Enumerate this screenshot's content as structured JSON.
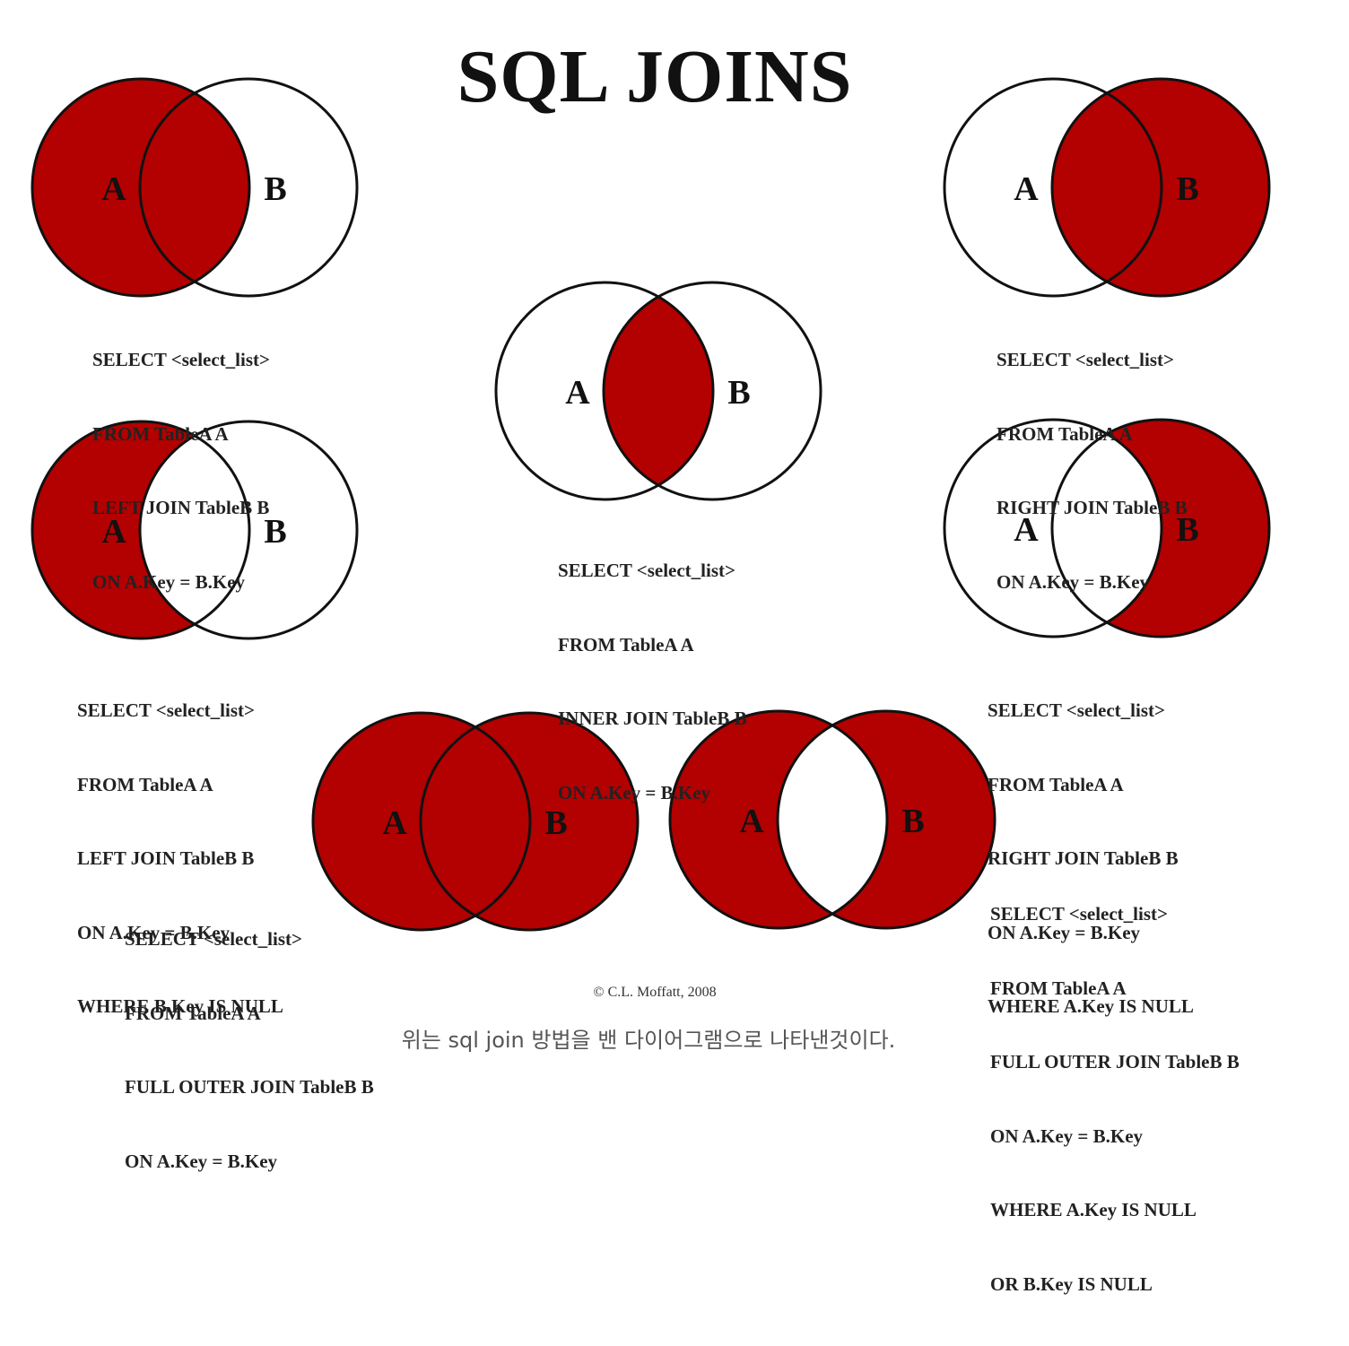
{
  "title": "SQL JOINS",
  "colors": {
    "fill": "#b30000",
    "stroke": "#111111",
    "background": "#ffffff"
  },
  "joins": [
    {
      "id": "left-join",
      "label_a": "A",
      "label_b": "B",
      "shade": "a_full",
      "code": [
        "SELECT <select_list>",
        "FROM TableA A",
        "LEFT JOIN TableB B",
        "ON A.Key = B.Key"
      ]
    },
    {
      "id": "inner-join",
      "label_a": "A",
      "label_b": "B",
      "shade": "intersection",
      "code": [
        "SELECT <select_list>",
        "FROM TableA A",
        "INNER JOIN TableB B",
        "ON A.Key = B.Key"
      ]
    },
    {
      "id": "right-join",
      "label_a": "A",
      "label_b": "B",
      "shade": "b_full",
      "code": [
        "SELECT <select_list>",
        "FROM TableA A",
        "RIGHT JOIN TableB B",
        "ON A.Key = B.Key"
      ]
    },
    {
      "id": "left-excluding-join",
      "label_a": "A",
      "label_b": "B",
      "shade": "a_only",
      "code": [
        "SELECT <select_list>",
        "FROM TableA A",
        "LEFT JOIN TableB B",
        "ON A.Key = B.Key",
        "WHERE B.Key IS NULL"
      ]
    },
    {
      "id": "right-excluding-join",
      "label_a": "A",
      "label_b": "B",
      "shade": "b_only",
      "code": [
        "SELECT <select_list>",
        "FROM TableA A",
        "RIGHT JOIN TableB B",
        "ON A.Key = B.Key",
        "WHERE A.Key IS NULL"
      ]
    },
    {
      "id": "full-outer-join",
      "label_a": "A",
      "label_b": "B",
      "shade": "union",
      "code": [
        "SELECT <select_list>",
        "FROM TableA A",
        "FULL OUTER JOIN TableB B",
        "ON A.Key = B.Key"
      ]
    },
    {
      "id": "full-outer-excluding-join",
      "label_a": "A",
      "label_b": "B",
      "shade": "symmetric_difference",
      "code": [
        "SELECT <select_list>",
        "FROM TableA A",
        "FULL OUTER JOIN TableB B",
        "ON A.Key = B.Key",
        "WHERE A.Key IS NULL",
        "OR B.Key IS NULL"
      ]
    }
  ],
  "copyright": "© C.L. Moffatt, 2008",
  "caption": "위는 sql join 방법을 밴 다이어그램으로 나타낸것이다."
}
